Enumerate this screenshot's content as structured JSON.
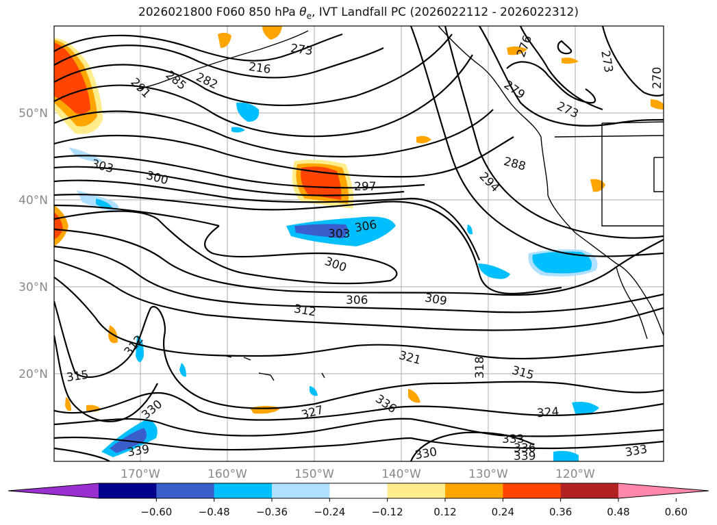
{
  "title": {
    "prefix": "2026021800 F060 850 hPa ",
    "theta": "θ",
    "theta_sub": "e",
    "suffix": ", IVT Landfall PC (2026022112 - 2026022312)"
  },
  "map": {
    "lat_labels": [
      "50°N",
      "40°N",
      "30°N",
      "20°N"
    ],
    "lon_labels": [
      "170°W",
      "160°W",
      "150°W",
      "140°W",
      "130°W",
      "120°W"
    ],
    "contour_labels": [
      "291",
      "285",
      "282",
      "216",
      "273",
      "276",
      "273",
      "270",
      "279",
      "273",
      "303",
      "300",
      "297",
      "288",
      "294",
      "306",
      "303",
      "300",
      "306",
      "309",
      "312",
      "312",
      "315",
      "321",
      "315",
      "318",
      "324",
      "330",
      "327",
      "336",
      "333",
      "336",
      "339",
      "330",
      "339",
      "333"
    ]
  },
  "colorbar": {
    "ticks": [
      "−0.60",
      "−0.48",
      "−0.36",
      "−0.24",
      "−0.12",
      "0.12",
      "0.24",
      "0.36",
      "0.48",
      "0.60"
    ],
    "colors": [
      "#9b30d0",
      "#00008b",
      "#3a5fcd",
      "#00bfff",
      "#b0e0ff",
      "#ffffff",
      "#ffec8b",
      "#ffa500",
      "#ff4500",
      "#b22222",
      "#ff88aa"
    ],
    "under_color": "#9b30d0",
    "over_color": "#ff88aa"
  }
}
